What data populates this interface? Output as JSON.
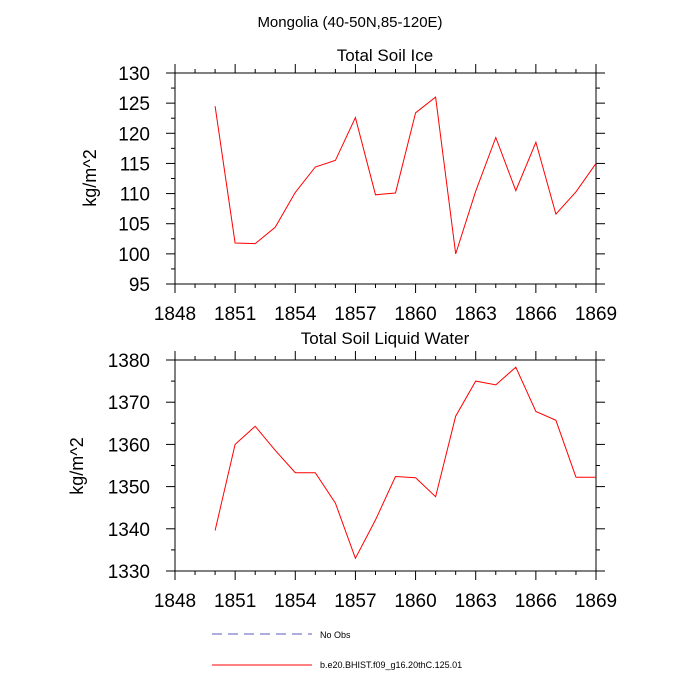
{
  "figure": {
    "title": "Mongolia (40-50N,85-120E)"
  },
  "chart_data": [
    {
      "type": "line",
      "title": "Total Soil Ice",
      "xlabel": "",
      "ylabel": "kg/m^2",
      "xlim": [
        1848,
        1869
      ],
      "ylim": [
        95,
        130
      ],
      "xticks": [
        1848,
        1851,
        1854,
        1857,
        1860,
        1863,
        1866,
        1869
      ],
      "yticks": [
        95,
        100,
        105,
        110,
        115,
        120,
        125,
        130
      ],
      "grid": false,
      "series": [
        {
          "name": "b.e20.BHIST.f09_g16.20thC.125.01",
          "color": "#ff0000",
          "x": [
            1850,
            1851,
            1852,
            1853,
            1854,
            1855,
            1856,
            1857,
            1858,
            1859,
            1860,
            1861,
            1862,
            1863,
            1864,
            1865,
            1866,
            1867,
            1868,
            1869
          ],
          "y": [
            124.5,
            101.8,
            101.7,
            104.4,
            110.2,
            114.4,
            115.5,
            122.6,
            109.8,
            110.1,
            123.4,
            126.0,
            100.0,
            110.4,
            119.3,
            110.5,
            118.5,
            106.6,
            110.3,
            115.0
          ]
        }
      ]
    },
    {
      "type": "line",
      "title": "Total Soil Liquid Water",
      "xlabel": "",
      "ylabel": "kg/m^2",
      "xlim": [
        1848,
        1869
      ],
      "ylim": [
        1330,
        1380
      ],
      "xticks": [
        1848,
        1851,
        1854,
        1857,
        1860,
        1863,
        1866,
        1869
      ],
      "yticks": [
        1330,
        1340,
        1350,
        1360,
        1370,
        1380
      ],
      "grid": false,
      "series": [
        {
          "name": "b.e20.BHIST.f09_g16.20thC.125.01",
          "color": "#ff0000",
          "x": [
            1850,
            1851,
            1852,
            1853,
            1854,
            1855,
            1856,
            1857,
            1858,
            1859,
            1860,
            1861,
            1862,
            1863,
            1864,
            1865,
            1866,
            1867,
            1868,
            1869
          ],
          "y": [
            1339.6,
            1360.0,
            1364.3,
            1358.6,
            1353.3,
            1353.3,
            1346.1,
            1333.0,
            1342.1,
            1352.4,
            1352.1,
            1347.6,
            1366.7,
            1375.0,
            1374.1,
            1378.3,
            1367.8,
            1365.7,
            1352.2,
            1352.2
          ]
        }
      ]
    }
  ],
  "legend": [
    {
      "label": "No Obs",
      "color": "#5a5abf",
      "dash": "dashed"
    },
    {
      "label": "b.e20.BHIST.f09_g16.20thC.125.01",
      "color": "#ff0000",
      "dash": "solid"
    }
  ]
}
